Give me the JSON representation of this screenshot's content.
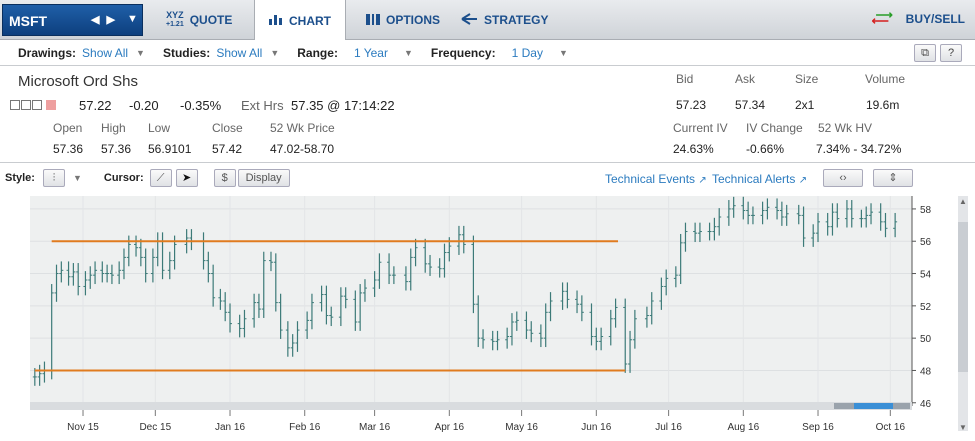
{
  "toolbar": {
    "symbol": "MSFT",
    "tabs": [
      {
        "label": "QUOTE",
        "icon": "xyz-quote-icon"
      },
      {
        "label": "CHART",
        "icon": "bar-chart-icon",
        "active": true
      },
      {
        "label": "OPTIONS",
        "icon": "options-icon"
      },
      {
        "label": "STRATEGY",
        "icon": "strategy-icon"
      }
    ],
    "buysell": "BUY/SELL",
    "xyz_label": "XYZ",
    "xyz_sub": "+1.21"
  },
  "settings": {
    "drawings_label": "Drawings:",
    "drawings_value": "Show All",
    "studies_label": "Studies:",
    "studies_value": "Show All",
    "range_label": "Range:",
    "range_value": "1 Year",
    "frequency_label": "Frequency:",
    "frequency_value": "1 Day",
    "help_label": "?"
  },
  "quote": {
    "name": "Microsoft Ord Shs",
    "last": "57.22",
    "change": "-0.20",
    "change_pct": "-0.35%",
    "ext_label": "Ext Hrs",
    "ext_value": "57.35 @ 17:14:22",
    "open_label": "Open",
    "open": "57.36",
    "high_label": "High",
    "high": "57.36",
    "low_label": "Low",
    "low": "56.9101",
    "close_label": "Close",
    "close": "57.42",
    "wk_label": "52 Wk Price",
    "wk": "47.02-58.70",
    "bid_label": "Bid",
    "bid": "57.23",
    "ask_label": "Ask",
    "ask": "57.34",
    "size_label": "Size",
    "size": "2x1",
    "volume_label": "Volume",
    "volume": "19.6m",
    "iv_label": "Current IV",
    "iv": "24.63%",
    "ivchg_label": "IV Change",
    "ivchg": "-0.66%",
    "hv_label": "52 Wk HV",
    "hv": "7.34% - 34.72%"
  },
  "chart_tools": {
    "style_label": "Style:",
    "cursor_label": "Cursor:",
    "dollar": "$",
    "display": "Display",
    "tech_events": "Technical Events",
    "tech_alerts": "Technical Alerts"
  },
  "chart_data": {
    "type": "line",
    "style": "ohlc",
    "x_tick_labels": [
      "Nov 15",
      "Dec 15",
      "Jan 16",
      "Feb 16",
      "Mar 16",
      "Apr 16",
      "May 16",
      "Jun 16",
      "Jul 16",
      "Aug 16",
      "Sep 16",
      "Oct 16"
    ],
    "y_ticks": [
      46,
      48,
      50,
      52,
      54,
      56,
      58
    ],
    "ylim": [
      45.8,
      58.8
    ],
    "grid": true,
    "colors": {
      "bars": "#3c7a78",
      "lines": "#e07b1f",
      "bg": "#eef0f0"
    },
    "series": [
      {
        "points": [
          [
            "2015-10-26",
            47.6
          ],
          [
            "2015-10-28",
            47.8
          ],
          [
            "2015-10-30",
            48.0
          ],
          [
            "2015-11-02",
            52.8
          ],
          [
            "2015-11-04",
            54.0
          ],
          [
            "2015-11-06",
            54.2
          ],
          [
            "2015-11-09",
            53.8
          ],
          [
            "2015-11-11",
            54.1
          ],
          [
            "2015-11-13",
            53.2
          ],
          [
            "2015-11-16",
            53.6
          ],
          [
            "2015-11-18",
            53.9
          ],
          [
            "2015-11-20",
            54.2
          ],
          [
            "2015-11-23",
            54.0
          ],
          [
            "2015-11-25",
            54.0
          ],
          [
            "2015-11-27",
            53.9
          ],
          [
            "2015-11-30",
            54.2
          ],
          [
            "2015-12-02",
            55.0
          ],
          [
            "2015-12-04",
            55.8
          ],
          [
            "2015-12-07",
            55.6
          ],
          [
            "2015-12-09",
            55.0
          ],
          [
            "2015-12-11",
            54.0
          ],
          [
            "2015-12-14",
            55.0
          ],
          [
            "2015-12-16",
            56.0
          ],
          [
            "2015-12-18",
            54.2
          ],
          [
            "2015-12-21",
            54.8
          ],
          [
            "2015-12-23",
            55.8
          ],
          [
            "2015-12-28",
            56.2
          ],
          [
            "2015-12-30",
            56.0
          ],
          [
            "2016-01-04",
            54.8
          ],
          [
            "2016-01-06",
            54.0
          ],
          [
            "2016-01-08",
            52.5
          ],
          [
            "2016-01-11",
            52.3
          ],
          [
            "2016-01-13",
            51.6
          ],
          [
            "2016-01-15",
            50.9
          ],
          [
            "2016-01-19",
            50.6
          ],
          [
            "2016-01-21",
            51.2
          ],
          [
            "2016-01-25",
            52.2
          ],
          [
            "2016-01-27",
            51.8
          ],
          [
            "2016-01-29",
            54.8
          ],
          [
            "2016-02-01",
            54.7
          ],
          [
            "2016-02-03",
            52.2
          ],
          [
            "2016-02-05",
            50.5
          ],
          [
            "2016-02-08",
            49.4
          ],
          [
            "2016-02-10",
            49.7
          ],
          [
            "2016-02-12",
            50.5
          ],
          [
            "2016-02-16",
            51.1
          ],
          [
            "2016-02-18",
            52.2
          ],
          [
            "2016-02-22",
            52.7
          ],
          [
            "2016-02-24",
            51.4
          ],
          [
            "2016-02-26",
            51.3
          ],
          [
            "2016-03-01",
            52.6
          ],
          [
            "2016-03-03",
            52.4
          ],
          [
            "2016-03-07",
            51.0
          ],
          [
            "2016-03-09",
            52.8
          ],
          [
            "2016-03-11",
            53.1
          ],
          [
            "2016-03-15",
            53.6
          ],
          [
            "2016-03-17",
            54.7
          ],
          [
            "2016-03-21",
            53.9
          ],
          [
            "2016-03-23",
            53.9
          ],
          [
            "2016-03-28",
            53.5
          ],
          [
            "2016-03-30",
            55.0
          ],
          [
            "2016-04-01",
            55.6
          ],
          [
            "2016-04-05",
            54.6
          ],
          [
            "2016-04-07",
            54.4
          ],
          [
            "2016-04-11",
            54.3
          ],
          [
            "2016-04-13",
            55.3
          ],
          [
            "2016-04-15",
            55.7
          ],
          [
            "2016-04-19",
            56.4
          ],
          [
            "2016-04-21",
            55.8
          ],
          [
            "2016-04-25",
            52.1
          ],
          [
            "2016-04-27",
            50.0
          ],
          [
            "2016-04-29",
            49.9
          ],
          [
            "2016-05-03",
            49.8
          ],
          [
            "2016-05-05",
            49.9
          ],
          [
            "2016-05-09",
            50.1
          ],
          [
            "2016-05-11",
            51.0
          ],
          [
            "2016-05-13",
            51.1
          ],
          [
            "2016-05-17",
            50.5
          ],
          [
            "2016-05-19",
            50.3
          ],
          [
            "2016-05-23",
            50.0
          ],
          [
            "2016-05-25",
            51.6
          ],
          [
            "2016-05-27",
            52.3
          ],
          [
            "2016-06-01",
            52.9
          ],
          [
            "2016-06-03",
            52.4
          ],
          [
            "2016-06-07",
            52.1
          ],
          [
            "2016-06-09",
            51.6
          ],
          [
            "2016-06-13",
            50.1
          ],
          [
            "2016-06-15",
            49.8
          ],
          [
            "2016-06-17",
            50.1
          ],
          [
            "2016-06-21",
            51.2
          ],
          [
            "2016-06-23",
            51.9
          ],
          [
            "2016-06-27",
            48.4
          ],
          [
            "2016-06-29",
            49.9
          ],
          [
            "2016-07-01",
            51.2
          ],
          [
            "2016-07-06",
            51.4
          ],
          [
            "2016-07-08",
            52.3
          ],
          [
            "2016-07-12",
            53.2
          ],
          [
            "2016-07-14",
            53.7
          ],
          [
            "2016-07-18",
            53.9
          ],
          [
            "2016-07-20",
            55.9
          ],
          [
            "2016-07-22",
            56.6
          ],
          [
            "2016-07-26",
            56.5
          ],
          [
            "2016-07-28",
            56.6
          ],
          [
            "2016-08-01",
            56.6
          ],
          [
            "2016-08-03",
            56.9
          ],
          [
            "2016-08-05",
            57.5
          ],
          [
            "2016-08-09",
            58.0
          ],
          [
            "2016-08-11",
            58.2
          ],
          [
            "2016-08-15",
            57.9
          ],
          [
            "2016-08-17",
            57.6
          ],
          [
            "2016-08-19",
            57.6
          ],
          [
            "2016-08-23",
            57.9
          ],
          [
            "2016-08-25",
            58.1
          ],
          [
            "2016-08-29",
            57.9
          ],
          [
            "2016-08-31",
            57.5
          ],
          [
            "2016-09-02",
            57.7
          ],
          [
            "2016-09-07",
            57.6
          ],
          [
            "2016-09-09",
            56.2
          ],
          [
            "2016-09-13",
            56.5
          ],
          [
            "2016-09-15",
            57.2
          ],
          [
            "2016-09-19",
            56.9
          ],
          [
            "2016-09-21",
            57.8
          ],
          [
            "2016-09-23",
            57.4
          ],
          [
            "2016-09-27",
            58.0
          ],
          [
            "2016-09-29",
            57.4
          ],
          [
            "2016-10-03",
            57.4
          ],
          [
            "2016-10-05",
            57.6
          ],
          [
            "2016-10-07",
            57.8
          ],
          [
            "2016-10-11",
            57.2
          ],
          [
            "2016-10-13",
            56.8
          ],
          [
            "2016-10-17",
            57.2
          ]
        ]
      }
    ],
    "horizontal_lines": [
      {
        "y": 56.0,
        "x_start": "2015-11-02",
        "x_end": "2016-06-24"
      },
      {
        "y": 48.0,
        "x_start": "2015-10-26",
        "x_end": "2016-06-27"
      }
    ]
  }
}
